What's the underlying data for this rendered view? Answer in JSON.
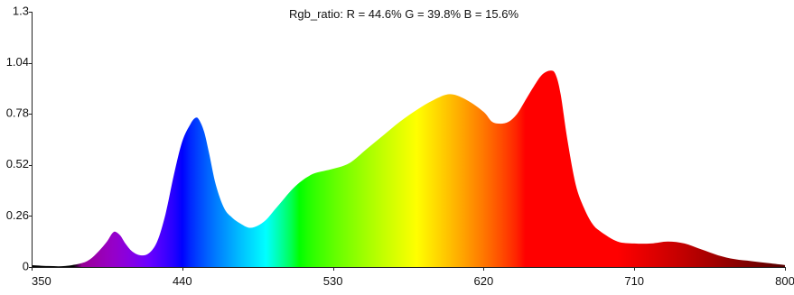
{
  "chart_data": {
    "type": "area",
    "title": "Rgb_ratio: R = 44.6% G = 39.8% B = 15.6%",
    "xlabel": "",
    "ylabel": "",
    "xlim": [
      350,
      800
    ],
    "ylim": [
      0,
      1.3
    ],
    "x_ticks": [
      "350",
      "440",
      "530",
      "620",
      "710",
      "800"
    ],
    "y_ticks": [
      "0",
      "0.26",
      "0.52",
      "0.78",
      "1.04",
      "1.3"
    ],
    "grid": false,
    "fill": "wavelength-colored spectrum",
    "series": [
      {
        "x": [
          350,
          360,
          370,
          380,
          385,
          390,
          395,
          398,
          400,
          403,
          406,
          410,
          415,
          420,
          425,
          430,
          435,
          440,
          445,
          448,
          450,
          453,
          456,
          460,
          465,
          470,
          475,
          480,
          485,
          490,
          495,
          500,
          505,
          510,
          515,
          520,
          530,
          540,
          550,
          560,
          570,
          580,
          590,
          600,
          610,
          620,
          625,
          630,
          635,
          640,
          645,
          650,
          655,
          660,
          663,
          666,
          670,
          675,
          680,
          685,
          690,
          700,
          710,
          720,
          730,
          740,
          750,
          760,
          770,
          780,
          790,
          800
        ],
        "y": [
          0.01,
          0.005,
          0.005,
          0.02,
          0.04,
          0.08,
          0.13,
          0.17,
          0.18,
          0.16,
          0.12,
          0.08,
          0.06,
          0.07,
          0.13,
          0.27,
          0.47,
          0.64,
          0.73,
          0.76,
          0.75,
          0.69,
          0.58,
          0.42,
          0.3,
          0.25,
          0.22,
          0.2,
          0.21,
          0.24,
          0.29,
          0.34,
          0.39,
          0.43,
          0.46,
          0.48,
          0.5,
          0.53,
          0.6,
          0.67,
          0.74,
          0.8,
          0.85,
          0.88,
          0.85,
          0.79,
          0.74,
          0.73,
          0.74,
          0.78,
          0.85,
          0.92,
          0.98,
          1.0,
          0.98,
          0.88,
          0.65,
          0.42,
          0.3,
          0.22,
          0.18,
          0.13,
          0.12,
          0.12,
          0.13,
          0.12,
          0.09,
          0.06,
          0.04,
          0.03,
          0.02,
          0.01
        ]
      }
    ]
  }
}
